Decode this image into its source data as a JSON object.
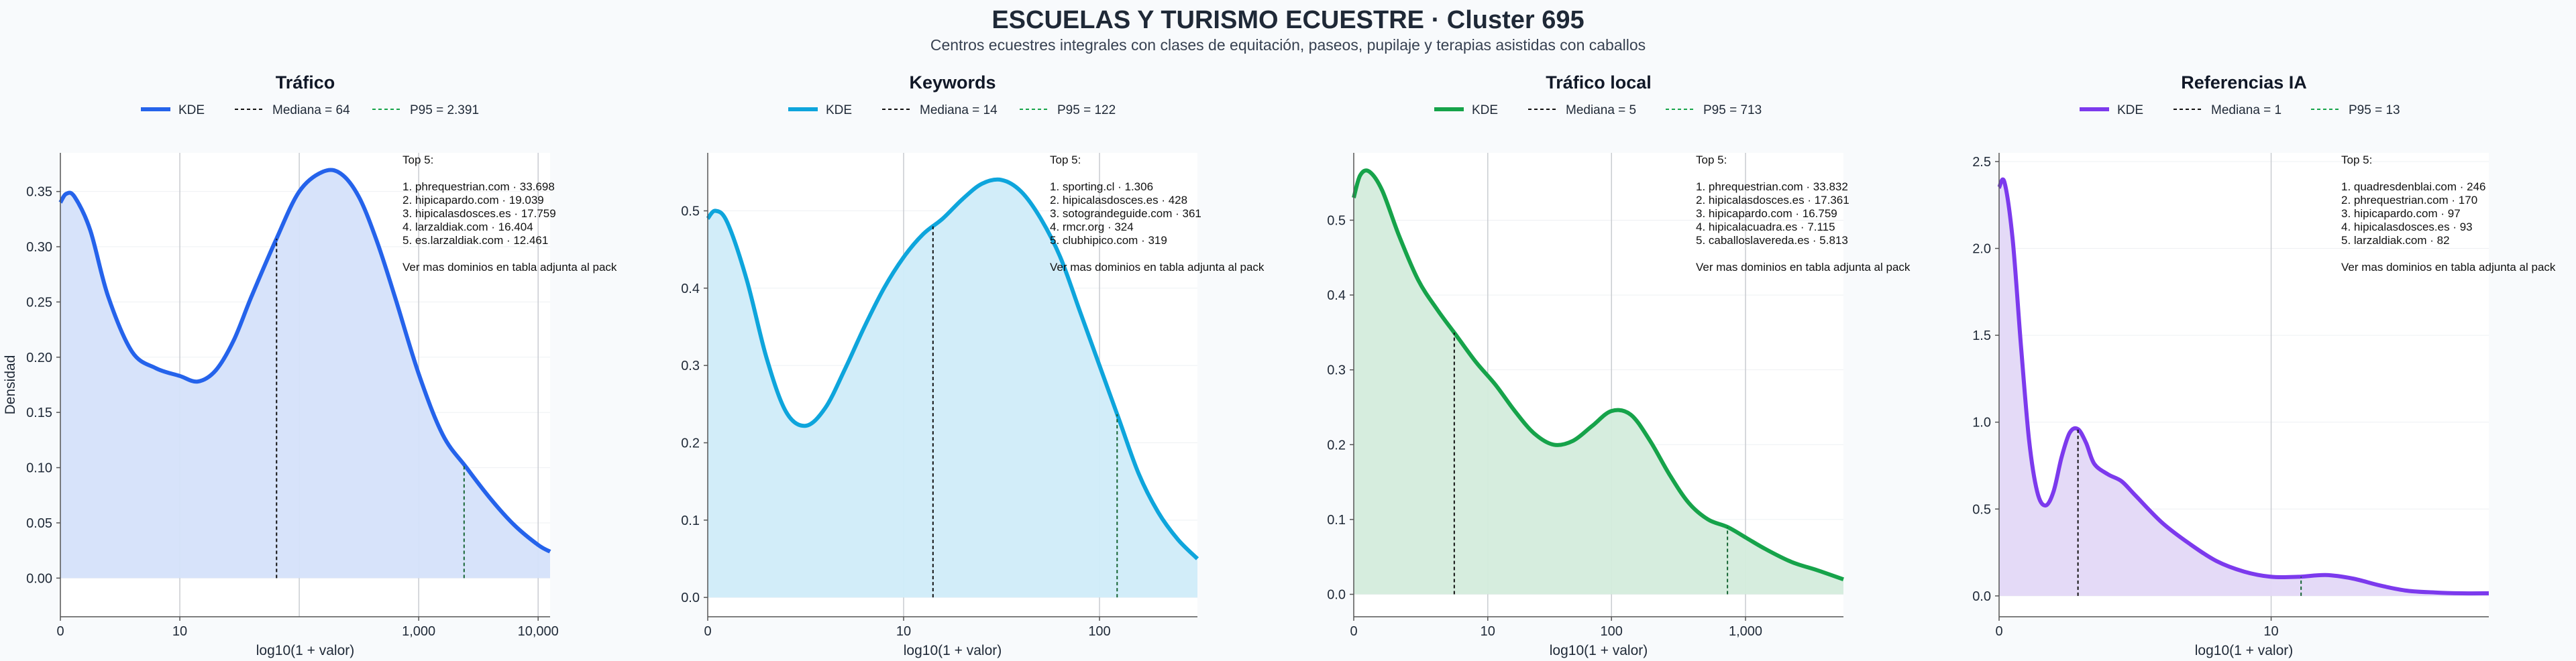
{
  "title": "ESCUELAS Y TURISMO ECUESTRE · Cluster 695",
  "subtitle": "Centros ecuestres integrales con clases de equitación, paseos, pupilaje y terapias asistidas con caballos",
  "colors": {
    "trafico": "#2563eb",
    "keywords": "#0ea5dc",
    "trafico_local": "#16a34a",
    "referencias_ia": "#7c3aed",
    "median_line": "#111111",
    "p95_line": "#166534"
  },
  "chart_data": [
    {
      "type": "area",
      "title": "Tráfico",
      "xlabel": "log10(1 + valor)",
      "ylabel": "Densidad",
      "xlim": [
        0,
        4.1
      ],
      "ylim": [
        -0.035,
        0.385
      ],
      "x_ticks": [
        0,
        1,
        2,
        3,
        4
      ],
      "x_tick_labels": [
        "0",
        "10",
        "1,000",
        "10,000"
      ],
      "x_tick_positions": [
        0,
        1,
        3,
        4
      ],
      "y_ticks": [
        0.0,
        0.05,
        0.1,
        0.15,
        0.2,
        0.25,
        0.3,
        0.35
      ],
      "y_tick_labels": [
        "0.00",
        "0.05",
        "0.10",
        "0.15",
        "0.20",
        "0.25",
        "0.30",
        "0.35"
      ],
      "grid_x": [
        1,
        2,
        3,
        4
      ],
      "legend": [
        "KDE",
        "Mediana = 64",
        "P95 = 2.391"
      ],
      "median_x": 1.81,
      "p95_x": 3.38,
      "series": [
        {
          "name": "KDE",
          "x": [
            0,
            0.05,
            0.12,
            0.25,
            0.4,
            0.6,
            0.8,
            1.0,
            1.15,
            1.3,
            1.45,
            1.6,
            1.8,
            2.0,
            2.2,
            2.35,
            2.5,
            2.65,
            2.8,
            3.0,
            3.2,
            3.4,
            3.6,
            3.8,
            4.0,
            4.1
          ],
          "y": [
            0.34,
            0.348,
            0.345,
            0.315,
            0.255,
            0.205,
            0.19,
            0.183,
            0.178,
            0.188,
            0.215,
            0.255,
            0.305,
            0.35,
            0.368,
            0.366,
            0.345,
            0.305,
            0.255,
            0.185,
            0.13,
            0.1,
            0.072,
            0.048,
            0.03,
            0.024
          ]
        }
      ],
      "top5": {
        "header": "Top 5:",
        "items": [
          "1. phrequestrian.com · 33.698",
          "2. hipicapardo.com · 19.039",
          "3. hipicalasdosces.es · 17.759",
          "4. larzaldiak.com · 16.404",
          "5. es.larzaldiak.com · 12.461"
        ],
        "footer": "Ver mas dominios en tabla adjunta al pack"
      }
    },
    {
      "type": "area",
      "title": "Keywords",
      "xlabel": "log10(1 + valor)",
      "ylabel": "",
      "xlim": [
        0,
        2.5
      ],
      "ylim": [
        -0.025,
        0.575
      ],
      "x_tick_labels": [
        "0",
        "10",
        "100"
      ],
      "x_tick_positions": [
        0,
        1,
        2
      ],
      "y_ticks": [
        0.0,
        0.1,
        0.2,
        0.3,
        0.4,
        0.5
      ],
      "y_tick_labels": [
        "0.0",
        "0.1",
        "0.2",
        "0.3",
        "0.4",
        "0.5"
      ],
      "grid_x": [
        1,
        2
      ],
      "legend": [
        "KDE",
        "Mediana = 14",
        "P95 = 122"
      ],
      "median_x": 1.15,
      "p95_x": 2.09,
      "series": [
        {
          "name": "KDE",
          "x": [
            0,
            0.04,
            0.1,
            0.2,
            0.3,
            0.4,
            0.5,
            0.6,
            0.7,
            0.8,
            0.9,
            1.0,
            1.1,
            1.2,
            1.3,
            1.4,
            1.5,
            1.6,
            1.7,
            1.8,
            1.9,
            2.0,
            2.1,
            2.2,
            2.3,
            2.4,
            2.5
          ],
          "y": [
            0.49,
            0.5,
            0.485,
            0.41,
            0.31,
            0.24,
            0.222,
            0.245,
            0.295,
            0.35,
            0.4,
            0.44,
            0.47,
            0.49,
            0.515,
            0.535,
            0.54,
            0.525,
            0.49,
            0.44,
            0.37,
            0.3,
            0.23,
            0.16,
            0.11,
            0.075,
            0.05
          ]
        }
      ],
      "top5": {
        "header": "Top 5:",
        "items": [
          "1. sporting.cl · 1.306",
          "2. hipicalasdosces.es · 428",
          "3. sotograndeguide.com · 361",
          "4. rmcr.org · 324",
          "5. clubhipico.com · 319"
        ],
        "footer": "Ver mas dominios en tabla adjunta al pack"
      }
    },
    {
      "type": "area",
      "title": "Tráfico local",
      "xlabel": "log10(1 + valor)",
      "ylabel": "",
      "xlim": [
        0,
        3.8
      ],
      "ylim": [
        -0.03,
        0.59
      ],
      "x_tick_labels": [
        "0",
        "10",
        "100",
        "1,000"
      ],
      "x_tick_positions": [
        0,
        1.04,
        2.0,
        3.04
      ],
      "y_ticks": [
        0.0,
        0.1,
        0.2,
        0.3,
        0.4,
        0.5
      ],
      "y_tick_labels": [
        "0.0",
        "0.1",
        "0.2",
        "0.3",
        "0.4",
        "0.5"
      ],
      "grid_x": [
        1.04,
        2.0,
        3.04
      ],
      "legend": [
        "KDE",
        "Mediana = 5",
        "P95 = 713"
      ],
      "median_x": 0.78,
      "p95_x": 2.9,
      "series": [
        {
          "name": "KDE",
          "x": [
            0,
            0.05,
            0.12,
            0.22,
            0.35,
            0.5,
            0.65,
            0.8,
            0.95,
            1.1,
            1.25,
            1.4,
            1.55,
            1.7,
            1.85,
            2.0,
            2.15,
            2.3,
            2.45,
            2.6,
            2.75,
            2.9,
            3.05,
            3.2,
            3.4,
            3.6,
            3.8
          ],
          "y": [
            0.53,
            0.56,
            0.565,
            0.54,
            0.48,
            0.42,
            0.38,
            0.345,
            0.31,
            0.28,
            0.245,
            0.215,
            0.2,
            0.205,
            0.225,
            0.245,
            0.24,
            0.205,
            0.16,
            0.122,
            0.1,
            0.09,
            0.075,
            0.06,
            0.043,
            0.032,
            0.02
          ]
        }
      ],
      "top5": {
        "header": "Top 5:",
        "items": [
          "1. phrequestrian.com · 33.832",
          "2. hipicalasdosces.es · 17.361",
          "3. hipicapardo.com · 16.759",
          "4. hipicalacuadra.es · 7.115",
          "5. caballoslavereda.es · 5.813"
        ],
        "footer": "Ver mas dominios en tabla adjunta al pack"
      }
    },
    {
      "type": "area",
      "title": "Referencias IA",
      "xlabel": "log10(1 + valor)",
      "ylabel": "",
      "xlim": [
        0,
        1.8
      ],
      "ylim": [
        -0.12,
        2.55
      ],
      "x_tick_labels": [
        "0",
        "10"
      ],
      "x_tick_positions": [
        0,
        1.0
      ],
      "y_ticks": [
        0.0,
        0.5,
        1.0,
        1.5,
        2.0,
        2.5
      ],
      "y_tick_labels": [
        "0.0",
        "0.5",
        "1.0",
        "1.5",
        "2.0",
        "2.5"
      ],
      "grid_x": [
        1.0
      ],
      "legend": [
        "KDE",
        "Mediana = 1",
        "P95 = 13"
      ],
      "median_x": 0.29,
      "p95_x": 1.11,
      "series": [
        {
          "name": "KDE",
          "x": [
            0,
            0.02,
            0.05,
            0.08,
            0.11,
            0.14,
            0.17,
            0.2,
            0.23,
            0.26,
            0.29,
            0.32,
            0.35,
            0.4,
            0.45,
            0.5,
            0.6,
            0.7,
            0.8,
            0.9,
            1.0,
            1.1,
            1.2,
            1.3,
            1.4,
            1.5,
            1.6,
            1.7,
            1.8
          ],
          "y": [
            2.35,
            2.38,
            2.05,
            1.45,
            0.9,
            0.6,
            0.52,
            0.6,
            0.8,
            0.94,
            0.96,
            0.88,
            0.76,
            0.7,
            0.66,
            0.58,
            0.42,
            0.3,
            0.2,
            0.14,
            0.11,
            0.11,
            0.12,
            0.1,
            0.06,
            0.03,
            0.02,
            0.015,
            0.015
          ]
        }
      ],
      "top5": {
        "header": "Top 5:",
        "items": [
          "1. quadresdenblai.com · 246",
          "2. phrequestrian.com · 170",
          "3. hipicapardo.com · 97",
          "4. hipicalasdosces.es · 93",
          "5. larzaldiak.com · 82"
        ],
        "footer": "Ver mas dominios en tabla adjunta al pack"
      }
    }
  ]
}
